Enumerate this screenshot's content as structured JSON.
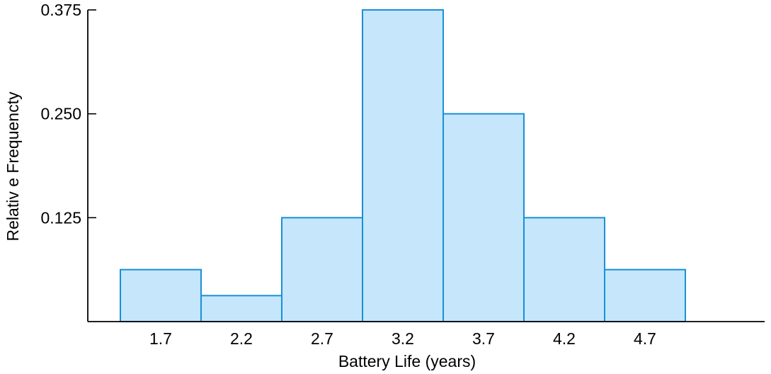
{
  "chart_data": {
    "type": "bar",
    "categories": [
      "1.7",
      "2.2",
      "2.7",
      "3.2",
      "3.7",
      "4.2",
      "4.7"
    ],
    "values": [
      0.0625,
      0.03125,
      0.125,
      0.375,
      0.25,
      0.125,
      0.0625
    ],
    "xlabel": "Battery Life (years)",
    "ylabel": "Relativ e Frequencty",
    "ylim": [
      0,
      0.375
    ],
    "y_ticks": [
      "0.125",
      "0.250",
      "0.375"
    ],
    "grid": false,
    "colors": {
      "bar_fill": "#c5e6fb",
      "bar_stroke": "#1a8fd8",
      "axis": "#000000"
    }
  }
}
